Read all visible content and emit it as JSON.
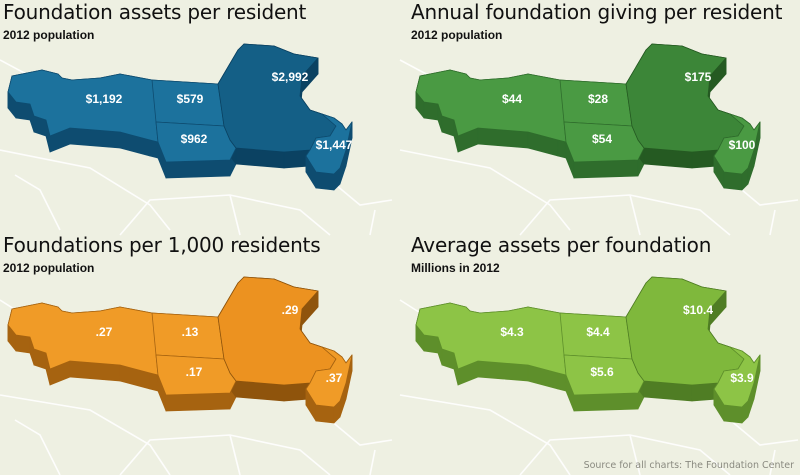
{
  "panels": [
    {
      "title": "Foundation assets per resident",
      "subtitle": "2012 population",
      "colors": {
        "top": "#1c729d",
        "side": "#0e4c70",
        "mn_top": "#145f86",
        "mn_side": "#0b4262"
      },
      "values": {
        "mt": "$1,192",
        "nd": "$579",
        "sd": "$962",
        "mn": "$2,992",
        "wi": "$1,447"
      }
    },
    {
      "title": "Annual foundation giving per resident",
      "subtitle": "2012 population",
      "colors": {
        "top": "#4a9a43",
        "side": "#2f6d2c",
        "mn_top": "#3c8638",
        "mn_side": "#255a22"
      },
      "values": {
        "mt": "$44",
        "nd": "$28",
        "sd": "$54",
        "mn": "$175",
        "wi": "$100"
      }
    },
    {
      "title": "Foundations per 1,000 residents",
      "subtitle": "2012 population",
      "colors": {
        "top": "#f09b27",
        "side": "#a66310",
        "mn_top": "#ec9220",
        "mn_side": "#8f540c"
      },
      "values": {
        "mt": ".27",
        "nd": ".13",
        "sd": ".17",
        "mn": ".29",
        "wi": ".37"
      }
    },
    {
      "title": "Average assets per foundation",
      "subtitle": "Millions in 2012",
      "colors": {
        "top": "#8dc446",
        "side": "#5e8f2b",
        "mn_top": "#7fb83c",
        "mn_side": "#4f7d24"
      },
      "values": {
        "mt": "$4.3",
        "nd": "$4.4",
        "sd": "$5.6",
        "mn": "$10.4",
        "wi": "$3.9"
      }
    }
  ],
  "source": "Source for all charts: The Foundation Center"
}
